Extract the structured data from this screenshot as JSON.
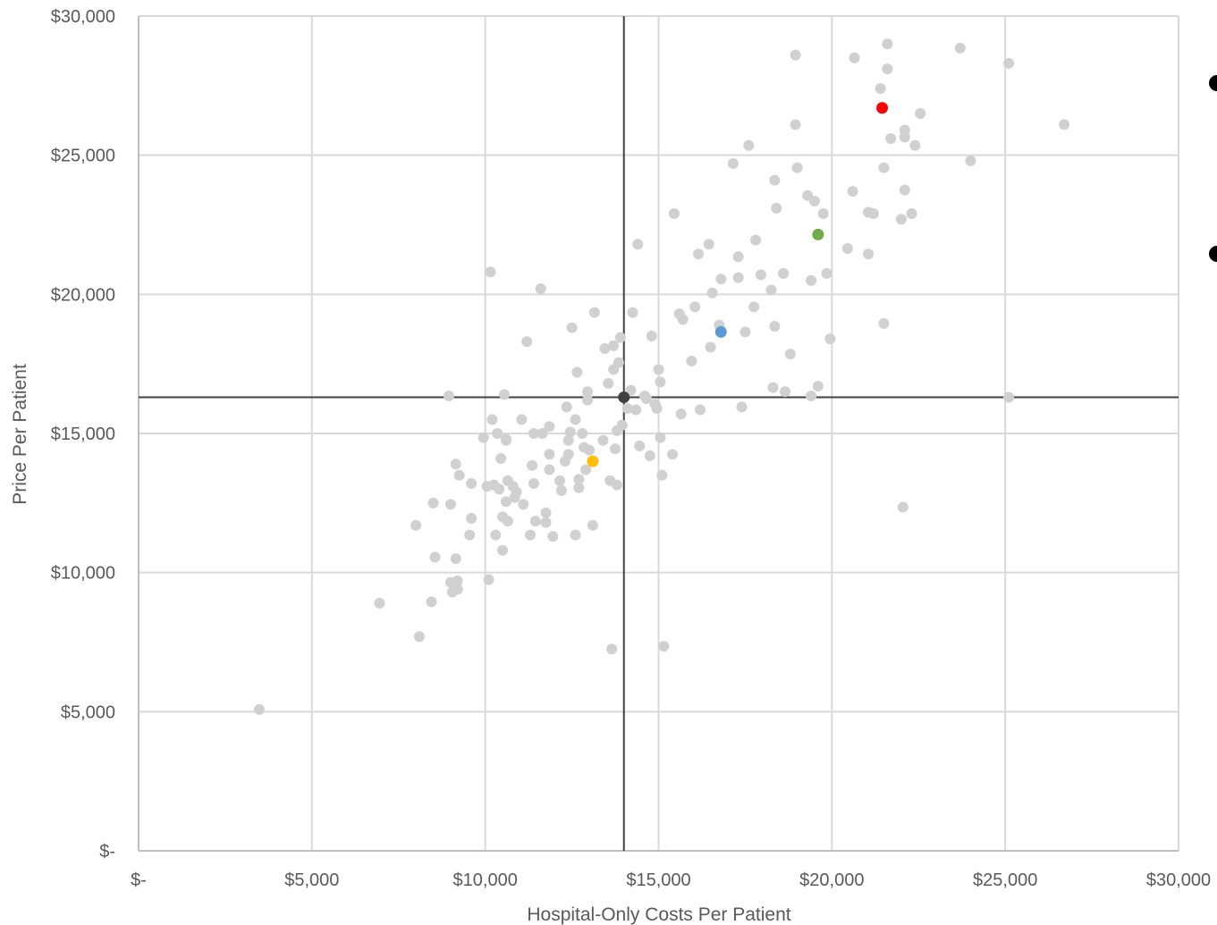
{
  "chart_data": {
    "type": "scatter",
    "xlabel": "Hospital-Only Costs Per Patient",
    "ylabel": "Price Per Patient",
    "xlim": [
      0,
      30000
    ],
    "ylim": [
      0,
      30000
    ],
    "x_ticks": [
      {
        "value": 0,
        "label": "$-"
      },
      {
        "value": 5000,
        "label": "$5,000"
      },
      {
        "value": 10000,
        "label": "$10,000"
      },
      {
        "value": 15000,
        "label": "$15,000"
      },
      {
        "value": 20000,
        "label": "$20,000"
      },
      {
        "value": 25000,
        "label": "$25,000"
      },
      {
        "value": 30000,
        "label": "$30,000"
      }
    ],
    "y_ticks": [
      {
        "value": 0,
        "label": "$-"
      },
      {
        "value": 5000,
        "label": "$5,000"
      },
      {
        "value": 10000,
        "label": "$10,000"
      },
      {
        "value": 15000,
        "label": "$15,000"
      },
      {
        "value": 20000,
        "label": "$20,000"
      },
      {
        "value": 25000,
        "label": "$25,000"
      },
      {
        "value": 30000,
        "label": "$30,000"
      }
    ],
    "grid": true,
    "reference_lines": {
      "x": 14000,
      "y": 16300
    },
    "colors": {
      "background_points": "#d0d0d0",
      "reference": "#404040",
      "grid": "#d9d9d9",
      "axis": "#bfbfbf"
    },
    "series": [
      {
        "color": "#d0d0d0",
        "points": [
          [
            3480,
            5080
          ],
          [
            6950,
            8900
          ],
          [
            8000,
            11700
          ],
          [
            8100,
            7700
          ],
          [
            8450,
            8950
          ],
          [
            8500,
            12500
          ],
          [
            8550,
            10550
          ],
          [
            8950,
            16350
          ],
          [
            9000,
            12450
          ],
          [
            9000,
            9650
          ],
          [
            9050,
            9300
          ],
          [
            9150,
            13900
          ],
          [
            9150,
            10500
          ],
          [
            9200,
            9700
          ],
          [
            9200,
            9400
          ],
          [
            9250,
            13500
          ],
          [
            9550,
            11350
          ],
          [
            9600,
            13200
          ],
          [
            9600,
            11950
          ],
          [
            9950,
            14850
          ],
          [
            10050,
            13100
          ],
          [
            10100,
            9750
          ],
          [
            10150,
            20800
          ],
          [
            10200,
            15500
          ],
          [
            10250,
            13150
          ],
          [
            10300,
            11350
          ],
          [
            10350,
            15000
          ],
          [
            10400,
            13000
          ],
          [
            10450,
            14100
          ],
          [
            10500,
            12000
          ],
          [
            10500,
            10800
          ],
          [
            10550,
            16400
          ],
          [
            10600,
            14800
          ],
          [
            10600,
            14750
          ],
          [
            10600,
            12550
          ],
          [
            10650,
            11850
          ],
          [
            10650,
            13300
          ],
          [
            10800,
            13100
          ],
          [
            10850,
            12700
          ],
          [
            10900,
            12900
          ],
          [
            11050,
            15500
          ],
          [
            11100,
            12450
          ],
          [
            11200,
            18300
          ],
          [
            11300,
            11350
          ],
          [
            11350,
            13850
          ],
          [
            11400,
            15000
          ],
          [
            11400,
            13200
          ],
          [
            11450,
            11850
          ],
          [
            11600,
            20200
          ],
          [
            11650,
            15000
          ],
          [
            11750,
            11800
          ],
          [
            11750,
            12150
          ],
          [
            11850,
            13700
          ],
          [
            11850,
            14250
          ],
          [
            11850,
            15250
          ],
          [
            11950,
            11300
          ],
          [
            12150,
            13300
          ],
          [
            12200,
            12950
          ],
          [
            12300,
            14000
          ],
          [
            12350,
            15950
          ],
          [
            12400,
            14750
          ],
          [
            12400,
            14250
          ],
          [
            12450,
            15050
          ],
          [
            12500,
            18800
          ],
          [
            12600,
            11350
          ],
          [
            12600,
            15500
          ],
          [
            12650,
            17200
          ],
          [
            12700,
            13350
          ],
          [
            12700,
            13050
          ],
          [
            12800,
            15000
          ],
          [
            12850,
            14500
          ],
          [
            12900,
            13700
          ],
          [
            12950,
            16500
          ],
          [
            12950,
            16200
          ],
          [
            13000,
            14400
          ],
          [
            13100,
            11700
          ],
          [
            13150,
            19350
          ],
          [
            13400,
            14750
          ],
          [
            13450,
            18050
          ],
          [
            13550,
            16800
          ],
          [
            13600,
            13300
          ],
          [
            13650,
            7250
          ],
          [
            13700,
            18150
          ],
          [
            13700,
            17300
          ],
          [
            13750,
            14450
          ],
          [
            13800,
            15100
          ],
          [
            13800,
            13150
          ],
          [
            13850,
            17550
          ],
          [
            13900,
            18450
          ],
          [
            13950,
            15300
          ],
          [
            14100,
            15900
          ],
          [
            14200,
            16550
          ],
          [
            14250,
            19350
          ],
          [
            14350,
            15850
          ],
          [
            14400,
            21800
          ],
          [
            14450,
            14550
          ],
          [
            14600,
            16350
          ],
          [
            14650,
            16250
          ],
          [
            14750,
            14200
          ],
          [
            14800,
            18500
          ],
          [
            14900,
            16050
          ],
          [
            14950,
            15900
          ],
          [
            15000,
            17300
          ],
          [
            15050,
            16850
          ],
          [
            15050,
            14850
          ],
          [
            15100,
            13500
          ],
          [
            15150,
            7350
          ],
          [
            15400,
            14250
          ],
          [
            15450,
            22900
          ],
          [
            15600,
            19300
          ],
          [
            15650,
            15700
          ],
          [
            15700,
            19100
          ],
          [
            15950,
            17600
          ],
          [
            16050,
            19550
          ],
          [
            16150,
            21450
          ],
          [
            16200,
            15850
          ],
          [
            16450,
            21800
          ],
          [
            16500,
            18100
          ],
          [
            16550,
            20050
          ],
          [
            16750,
            18900
          ],
          [
            16800,
            20550
          ],
          [
            17150,
            24700
          ],
          [
            17300,
            20600
          ],
          [
            17300,
            21350
          ],
          [
            17400,
            15950
          ],
          [
            17500,
            18650
          ],
          [
            17600,
            25350
          ],
          [
            17750,
            19550
          ],
          [
            17800,
            21950
          ],
          [
            17950,
            20700
          ],
          [
            18250,
            20150
          ],
          [
            18300,
            16650
          ],
          [
            18350,
            18850
          ],
          [
            18350,
            24100
          ],
          [
            18400,
            23100
          ],
          [
            18600,
            20750
          ],
          [
            18650,
            16500
          ],
          [
            18800,
            17850
          ],
          [
            18950,
            28600
          ],
          [
            18950,
            26100
          ],
          [
            19000,
            24550
          ],
          [
            19300,
            23550
          ],
          [
            19400,
            20500
          ],
          [
            19500,
            23350
          ],
          [
            19400,
            16350
          ],
          [
            19600,
            16700
          ],
          [
            19750,
            22900
          ],
          [
            19850,
            20750
          ],
          [
            19950,
            18400
          ],
          [
            20450,
            21650
          ],
          [
            20600,
            23700
          ],
          [
            20650,
            28500
          ],
          [
            21050,
            21450
          ],
          [
            21050,
            22950
          ],
          [
            21200,
            22900
          ],
          [
            21400,
            27400
          ],
          [
            21500,
            18950
          ],
          [
            21500,
            24550
          ],
          [
            21600,
            29000
          ],
          [
            21600,
            28100
          ],
          [
            21700,
            25600
          ],
          [
            22000,
            22700
          ],
          [
            22050,
            12350
          ],
          [
            22100,
            25900
          ],
          [
            22100,
            25650
          ],
          [
            22100,
            23750
          ],
          [
            22300,
            22900
          ],
          [
            22400,
            25350
          ],
          [
            22550,
            26500
          ],
          [
            23700,
            28850
          ],
          [
            24000,
            24800
          ],
          [
            25100,
            16300
          ],
          [
            25100,
            28300
          ],
          [
            26700,
            26100
          ]
        ]
      },
      {
        "color": "#404040",
        "points": [
          [
            14000,
            16300
          ]
        ]
      },
      {
        "color": "#ff0000",
        "points": [
          [
            21450,
            26700
          ]
        ]
      },
      {
        "color": "#70ad47",
        "points": [
          [
            19600,
            22150
          ]
        ]
      },
      {
        "color": "#5b9bd5",
        "points": [
          [
            16800,
            18650
          ]
        ]
      },
      {
        "color": "#ffc000",
        "points": [
          [
            13100,
            14000
          ]
        ]
      }
    ]
  }
}
